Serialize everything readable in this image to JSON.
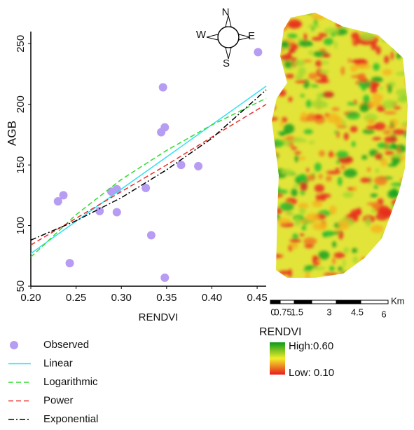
{
  "chart_data": {
    "type": "scatter",
    "x_label": "RENDVI",
    "y_label": "AGB",
    "xlim": [
      0.2,
      0.46
    ],
    "ylim": [
      50,
      260
    ],
    "xticks": [
      {
        "value": 0.2,
        "label": "0.20"
      },
      {
        "value": 0.25,
        "label": "0.25"
      },
      {
        "value": 0.3,
        "label": "0.30"
      },
      {
        "value": 0.35,
        "label": "0.35"
      },
      {
        "value": 0.4,
        "label": "0.40"
      },
      {
        "value": 0.45,
        "label": "0.45"
      }
    ],
    "yticks": [
      50,
      100,
      150,
      200,
      250
    ],
    "series": [
      {
        "name": "Observed",
        "type": "scatter",
        "color": "#b69cf2",
        "x": [
          0.23,
          0.236,
          0.243,
          0.276,
          0.289,
          0.295,
          0.295,
          0.327,
          0.333,
          0.344,
          0.346,
          0.348,
          0.348,
          0.366,
          0.385,
          0.451
        ],
        "values": [
          120,
          125,
          69,
          112,
          128,
          130,
          111,
          131,
          92,
          177,
          214,
          181,
          57,
          150,
          149,
          243
        ]
      },
      {
        "name": "Linear",
        "type": "line",
        "color": "#33dff0",
        "linestyle": "solid",
        "x": [
          0.2,
          0.46
        ],
        "values": [
          77,
          215
        ]
      },
      {
        "name": "Logarithmic",
        "type": "line",
        "color": "#2edc2e",
        "linestyle": "dashed",
        "x": [
          0.2,
          0.25,
          0.3,
          0.35,
          0.4,
          0.46
        ],
        "values": [
          74,
          109,
          138,
          162,
          183,
          205
        ]
      },
      {
        "name": "Power",
        "type": "line",
        "color": "#e8302a",
        "linestyle": "dashed",
        "x": [
          0.2,
          0.25,
          0.3,
          0.35,
          0.4,
          0.46
        ],
        "values": [
          84,
          106,
          128,
          150,
          173,
          200
        ]
      },
      {
        "name": "Exponential",
        "type": "line",
        "color": "#000000",
        "linestyle": "dashdot",
        "x": [
          0.2,
          0.25,
          0.3,
          0.35,
          0.4,
          0.46
        ],
        "values": [
          88,
          104,
          123,
          146,
          172,
          212
        ]
      }
    ]
  },
  "map": {
    "compass": {
      "n": "N",
      "e": "E",
      "s": "S",
      "w": "W"
    },
    "scale": {
      "labels": [
        "0",
        "0.75",
        "1.5",
        "3",
        "4.5",
        "6"
      ],
      "unit": "Km"
    },
    "legend": {
      "title": "RENDVI",
      "high": "High:0.60",
      "low": "Low: 0.10"
    }
  }
}
